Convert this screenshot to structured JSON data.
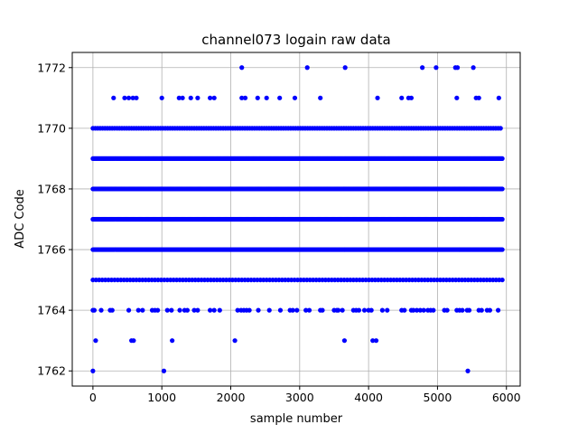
{
  "chart_data": {
    "type": "scatter",
    "title": "channel073 logain raw data",
    "xlabel": "sample number",
    "ylabel": "ADC Code",
    "xlim": [
      -300,
      6200
    ],
    "ylim": [
      1761.5,
      1772.5
    ],
    "xticks": [
      0,
      1000,
      2000,
      3000,
      4000,
      5000,
      6000
    ],
    "yticks": [
      1762,
      1764,
      1766,
      1768,
      1770,
      1772
    ],
    "grid": true,
    "marker_color": "#0000ff",
    "series": [
      {
        "x_range": [
          0,
          5940
        ],
        "levels": [
          {
            "value": 1765,
            "step": 45
          },
          {
            "value": 1766,
            "step": 15
          },
          {
            "value": 1767,
            "step": 15
          },
          {
            "value": 1768,
            "step": 12
          },
          {
            "value": 1769,
            "step": 15
          },
          {
            "value": 1770,
            "step": 35
          }
        ],
        "points": [
          [
            0,
            1762
          ],
          [
            1030,
            1762
          ],
          [
            5440,
            1762
          ],
          [
            40,
            1763
          ],
          [
            560,
            1763
          ],
          [
            590,
            1763
          ],
          [
            1150,
            1763
          ],
          [
            2060,
            1763
          ],
          [
            3650,
            1763
          ],
          [
            4060,
            1763
          ],
          [
            4110,
            1763
          ],
          [
            0,
            1764
          ],
          [
            20,
            1764
          ],
          [
            120,
            1764
          ],
          [
            250,
            1764
          ],
          [
            280,
            1764
          ],
          [
            520,
            1764
          ],
          [
            660,
            1764
          ],
          [
            720,
            1764
          ],
          [
            860,
            1764
          ],
          [
            900,
            1764
          ],
          [
            940,
            1764
          ],
          [
            1080,
            1764
          ],
          [
            1140,
            1764
          ],
          [
            1260,
            1764
          ],
          [
            1330,
            1764
          ],
          [
            1370,
            1764
          ],
          [
            1470,
            1764
          ],
          [
            1520,
            1764
          ],
          [
            1700,
            1764
          ],
          [
            1760,
            1764
          ],
          [
            1840,
            1764
          ],
          [
            2100,
            1764
          ],
          [
            2150,
            1764
          ],
          [
            2190,
            1764
          ],
          [
            2230,
            1764
          ],
          [
            2270,
            1764
          ],
          [
            2400,
            1764
          ],
          [
            2560,
            1764
          ],
          [
            2720,
            1764
          ],
          [
            2860,
            1764
          ],
          [
            2900,
            1764
          ],
          [
            2960,
            1764
          ],
          [
            3090,
            1764
          ],
          [
            3140,
            1764
          ],
          [
            3300,
            1764
          ],
          [
            3330,
            1764
          ],
          [
            3500,
            1764
          ],
          [
            3540,
            1764
          ],
          [
            3560,
            1764
          ],
          [
            3620,
            1764
          ],
          [
            3780,
            1764
          ],
          [
            3820,
            1764
          ],
          [
            3860,
            1764
          ],
          [
            3940,
            1764
          ],
          [
            4000,
            1764
          ],
          [
            4040,
            1764
          ],
          [
            4200,
            1764
          ],
          [
            4270,
            1764
          ],
          [
            4480,
            1764
          ],
          [
            4520,
            1764
          ],
          [
            4620,
            1764
          ],
          [
            4650,
            1764
          ],
          [
            4700,
            1764
          ],
          [
            4750,
            1764
          ],
          [
            4800,
            1764
          ],
          [
            4860,
            1764
          ],
          [
            4900,
            1764
          ],
          [
            4940,
            1764
          ],
          [
            5100,
            1764
          ],
          [
            5140,
            1764
          ],
          [
            5280,
            1764
          ],
          [
            5320,
            1764
          ],
          [
            5360,
            1764
          ],
          [
            5430,
            1764
          ],
          [
            5460,
            1764
          ],
          [
            5600,
            1764
          ],
          [
            5640,
            1764
          ],
          [
            5720,
            1764
          ],
          [
            5760,
            1764
          ],
          [
            5880,
            1764
          ],
          [
            300,
            1771
          ],
          [
            460,
            1771
          ],
          [
            520,
            1771
          ],
          [
            580,
            1771
          ],
          [
            630,
            1771
          ],
          [
            1000,
            1771
          ],
          [
            1250,
            1771
          ],
          [
            1300,
            1771
          ],
          [
            1420,
            1771
          ],
          [
            1520,
            1771
          ],
          [
            1700,
            1771
          ],
          [
            1760,
            1771
          ],
          [
            2160,
            1771
          ],
          [
            2210,
            1771
          ],
          [
            2390,
            1771
          ],
          [
            2520,
            1771
          ],
          [
            2710,
            1771
          ],
          [
            2930,
            1771
          ],
          [
            3300,
            1771
          ],
          [
            4130,
            1771
          ],
          [
            4480,
            1771
          ],
          [
            4580,
            1771
          ],
          [
            4620,
            1771
          ],
          [
            5280,
            1771
          ],
          [
            5560,
            1771
          ],
          [
            5600,
            1771
          ],
          [
            5890,
            1771
          ],
          [
            2160,
            1772
          ],
          [
            3110,
            1772
          ],
          [
            3660,
            1772
          ],
          [
            4780,
            1772
          ],
          [
            4980,
            1772
          ],
          [
            5260,
            1772
          ],
          [
            5290,
            1772
          ],
          [
            5520,
            1772
          ]
        ]
      }
    ]
  }
}
